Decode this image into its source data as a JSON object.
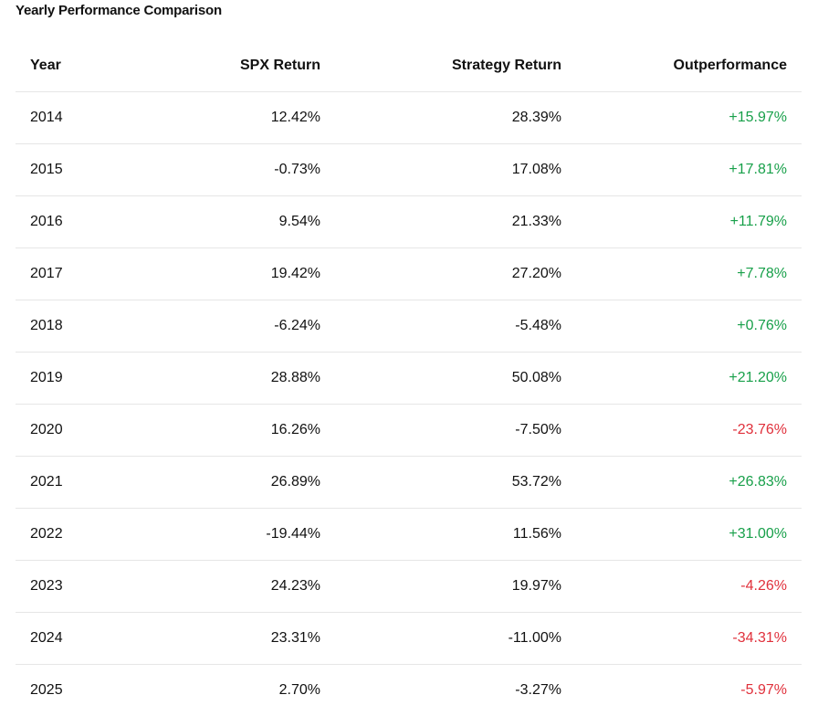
{
  "title": "Yearly Performance Comparison",
  "headers": {
    "year": "Year",
    "spx": "SPX Return",
    "strategy": "Strategy Return",
    "outperformance": "Outperformance"
  },
  "rows": [
    {
      "year": "2014",
      "spx": "12.42%",
      "strategy": "28.39%",
      "out": "+15.97%"
    },
    {
      "year": "2015",
      "spx": "-0.73%",
      "strategy": "17.08%",
      "out": "+17.81%"
    },
    {
      "year": "2016",
      "spx": "9.54%",
      "strategy": "21.33%",
      "out": "+11.79%"
    },
    {
      "year": "2017",
      "spx": "19.42%",
      "strategy": "27.20%",
      "out": "+7.78%"
    },
    {
      "year": "2018",
      "spx": "-6.24%",
      "strategy": "-5.48%",
      "out": "+0.76%"
    },
    {
      "year": "2019",
      "spx": "28.88%",
      "strategy": "50.08%",
      "out": "+21.20%"
    },
    {
      "year": "2020",
      "spx": "16.26%",
      "strategy": "-7.50%",
      "out": "-23.76%"
    },
    {
      "year": "2021",
      "spx": "26.89%",
      "strategy": "53.72%",
      "out": "+26.83%"
    },
    {
      "year": "2022",
      "spx": "-19.44%",
      "strategy": "11.56%",
      "out": "+31.00%"
    },
    {
      "year": "2023",
      "spx": "24.23%",
      "strategy": "19.97%",
      "out": "-4.26%"
    },
    {
      "year": "2024",
      "spx": "23.31%",
      "strategy": "-11.00%",
      "out": "-34.31%"
    },
    {
      "year": "2025",
      "spx": "2.70%",
      "strategy": "-3.27%",
      "out": "-5.97%"
    }
  ],
  "colors": {
    "positive": "#18a04a",
    "negative": "#e0303b",
    "divider": "#e6e6e6"
  }
}
